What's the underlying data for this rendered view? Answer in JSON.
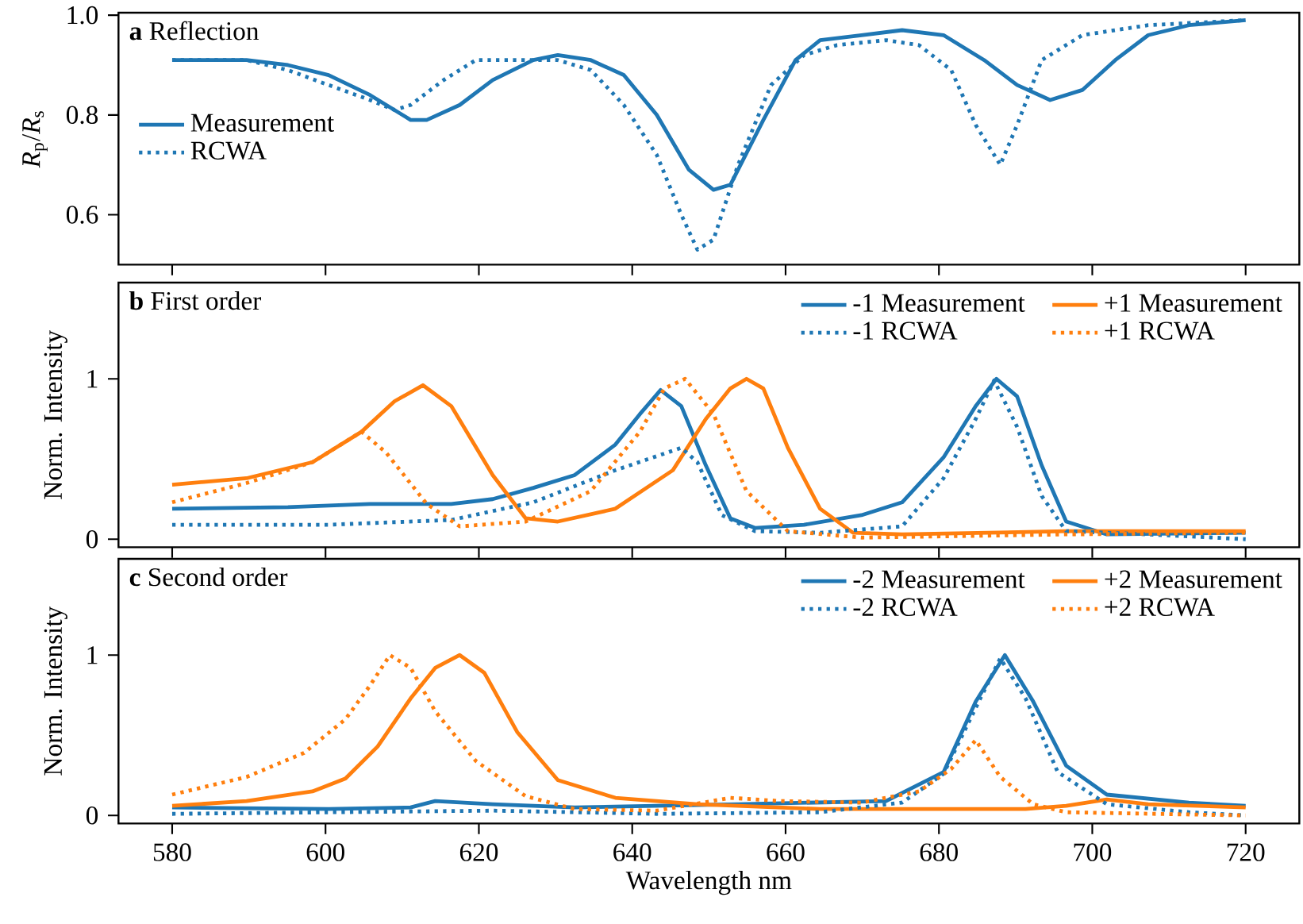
{
  "chart_data": [
    {
      "type": "line",
      "title": "**a** Reflection",
      "ylabel": "*R*$_{p}$/*R*$_{s}$",
      "xlim": [
        573,
        727
      ],
      "xticks": [
        580,
        600,
        620,
        640,
        660,
        680,
        700,
        720
      ],
      "ylim": [
        0.5,
        1.005
      ],
      "yticks": [
        0.6,
        0.8,
        {
          "value": 1.0,
          "label": "1.0"
        }
      ],
      "tick_labels": "y",
      "legend": "left",
      "marker": "none",
      "series": [
        {
          "name": "Measurement",
          "color": "#1f77b4",
          "line_style": "solid",
          "x": [
            580,
            589.7,
            595.1,
            600.4,
            605.8,
            611.1,
            613.2,
            617.5,
            621.8,
            627.1,
            630.3,
            634.6,
            638.9,
            643.2,
            647.4,
            650.6,
            652.8,
            657.1,
            661.3,
            664.5,
            669.9,
            675.2,
            680.6,
            685.9,
            690.2,
            694.5,
            698.7,
            703,
            707.3,
            712.6,
            720
          ],
          "values": [
            0.91,
            0.91,
            0.9,
            0.88,
            0.84,
            0.79,
            0.79,
            0.82,
            0.87,
            0.91,
            0.92,
            0.91,
            0.88,
            0.8,
            0.69,
            0.65,
            0.66,
            0.79,
            0.91,
            0.95,
            0.96,
            0.97,
            0.96,
            0.91,
            0.86,
            0.83,
            0.85,
            0.91,
            0.96,
            0.98,
            0.99
          ]
        },
        {
          "name": "RCWA",
          "color": "#1f77b4",
          "line_style": "dotted",
          "x": [
            580,
            589.7,
            595.1,
            600.4,
            605.8,
            609,
            611.1,
            615.4,
            619.6,
            623.9,
            630.3,
            634.6,
            638.9,
            643.2,
            646.4,
            648.5,
            650.6,
            653.8,
            658.1,
            662.4,
            666.7,
            673.1,
            677.4,
            681.6,
            684.8,
            688,
            690.2,
            693.4,
            698.7,
            707.3,
            720
          ],
          "values": [
            0.91,
            0.91,
            0.89,
            0.86,
            0.83,
            0.81,
            0.82,
            0.87,
            0.91,
            0.91,
            0.91,
            0.89,
            0.82,
            0.72,
            0.6,
            0.53,
            0.55,
            0.7,
            0.86,
            0.92,
            0.94,
            0.95,
            0.94,
            0.89,
            0.78,
            0.7,
            0.78,
            0.91,
            0.96,
            0.98,
            0.99
          ]
        }
      ]
    },
    {
      "type": "line",
      "title": "**b** First order",
      "ylabel": "Norm. Intensity",
      "xlim": [
        573,
        727
      ],
      "xticks": [
        580,
        600,
        620,
        640,
        660,
        680,
        700,
        720
      ],
      "ylim": [
        -0.05,
        1.6
      ],
      "yticks": [
        0,
        1
      ],
      "tick_labels": "y",
      "legend": "top right",
      "marker": "none",
      "series": [
        {
          "name": "-1 Measurement",
          "color": "#1f77b4",
          "line_style": "solid",
          "x": [
            580,
            595.1,
            605.8,
            616.4,
            621.8,
            627.1,
            632.5,
            637.8,
            641,
            643.7,
            646.4,
            649.6,
            652.8,
            656,
            662.4,
            669.9,
            675.2,
            680.6,
            684.8,
            687.5,
            690.2,
            693.4,
            696.6,
            701.9,
            720
          ],
          "values": [
            0.19,
            0.2,
            0.22,
            0.22,
            0.25,
            0.32,
            0.4,
            0.59,
            0.78,
            0.93,
            0.83,
            0.46,
            0.13,
            0.07,
            0.09,
            0.15,
            0.23,
            0.51,
            0.83,
            1.0,
            0.89,
            0.46,
            0.11,
            0.03,
            0.04
          ]
        },
        {
          "name": "+1 Measurement",
          "color": "#ff7f0e",
          "line_style": "solid",
          "x": [
            580,
            589.7,
            598.3,
            604.7,
            609,
            612.7,
            616.4,
            621.8,
            626.1,
            630.3,
            637.8,
            645.3,
            649.6,
            652.8,
            654.9,
            657.1,
            660.3,
            664.5,
            668.8,
            675.2,
            696.6,
            720
          ],
          "values": [
            0.34,
            0.38,
            0.48,
            0.67,
            0.86,
            0.96,
            0.83,
            0.4,
            0.13,
            0.11,
            0.19,
            0.43,
            0.75,
            0.94,
            1.0,
            0.94,
            0.57,
            0.19,
            0.04,
            0.03,
            0.05,
            0.05
          ]
        },
        {
          "name": "-1 RCWA",
          "color": "#1f77b4",
          "line_style": "dotted",
          "x": [
            580,
            600.4,
            616.4,
            627.1,
            637.8,
            646.4,
            648.5,
            651.7,
            656,
            664.5,
            675.2,
            680.6,
            684.8,
            687.2,
            690.2,
            693.4,
            696.6,
            707.3,
            720
          ],
          "values": [
            0.09,
            0.09,
            0.12,
            0.23,
            0.43,
            0.57,
            0.48,
            0.15,
            0.05,
            0.04,
            0.08,
            0.38,
            0.75,
            0.99,
            0.7,
            0.27,
            0.05,
            0.03,
            0
          ]
        },
        {
          "name": "+1 RCWA",
          "color": "#ff7f0e",
          "line_style": "dotted",
          "x": [
            580,
            589.7,
            598.3,
            604.7,
            607.9,
            613.2,
            617.5,
            626.1,
            634.6,
            641,
            644.2,
            646.9,
            650.6,
            654.9,
            660.3,
            669.9,
            696.6,
            720
          ],
          "values": [
            0.23,
            0.35,
            0.48,
            0.67,
            0.54,
            0.22,
            0.08,
            0.11,
            0.3,
            0.67,
            0.94,
            1.0,
            0.78,
            0.3,
            0.05,
            0.01,
            0.03,
            0.04
          ]
        }
      ]
    },
    {
      "type": "line",
      "title": "**c** Second order",
      "xlabel": "Wavelength nm",
      "ylabel": "Norm. Intensity",
      "xlim": [
        573,
        727
      ],
      "xticks": [
        580,
        600,
        620,
        640,
        660,
        680,
        700,
        720
      ],
      "ylim": [
        -0.05,
        1.6
      ],
      "yticks": [
        0,
        1
      ],
      "legend": "top right",
      "marker": "none",
      "series": [
        {
          "name": "-2 Measurement",
          "color": "#1f77b4",
          "line_style": "solid",
          "x": [
            580,
            600.4,
            611.1,
            614.3,
            621.8,
            632.5,
            653.8,
            673.1,
            680.6,
            684.8,
            688.6,
            692.3,
            696.6,
            701.9,
            712.6,
            720
          ],
          "values": [
            0.05,
            0.04,
            0.05,
            0.09,
            0.07,
            0.05,
            0.07,
            0.09,
            0.27,
            0.71,
            1.0,
            0.71,
            0.31,
            0.13,
            0.08,
            0.06
          ]
        },
        {
          "name": "+2 Measurement",
          "color": "#ff7f0e",
          "line_style": "solid",
          "x": [
            580,
            589.7,
            598.3,
            602.6,
            606.8,
            611.1,
            614.3,
            617.5,
            620.7,
            625,
            630.3,
            637.8,
            648.5,
            664.5,
            691.3,
            696.6,
            701.9,
            707.3,
            720
          ],
          "values": [
            0.06,
            0.09,
            0.15,
            0.23,
            0.43,
            0.73,
            0.92,
            1.0,
            0.89,
            0.52,
            0.22,
            0.11,
            0.07,
            0.04,
            0.04,
            0.06,
            0.1,
            0.07,
            0.05
          ]
        },
        {
          "name": "-2 RCWA",
          "color": "#1f77b4",
          "line_style": "dotted",
          "x": [
            580,
            621.8,
            643.2,
            664.5,
            675.2,
            680.6,
            685.4,
            688,
            691.3,
            695.5,
            701.9,
            712.6,
            720
          ],
          "values": [
            0.01,
            0.03,
            0.01,
            0.02,
            0.08,
            0.26,
            0.73,
            0.98,
            0.73,
            0.27,
            0.07,
            0.02,
            0
          ]
        },
        {
          "name": "+2 RCWA",
          "color": "#ff7f0e",
          "line_style": "dotted",
          "x": [
            580,
            589.7,
            597.2,
            602.6,
            605.8,
            608.4,
            611.1,
            614.3,
            619.6,
            626.1,
            632.5,
            643.2,
            652.8,
            659.2,
            669.9,
            677.4,
            681.6,
            684.8,
            688,
            692.3,
            696.6,
            720
          ],
          "values": [
            0.13,
            0.24,
            0.39,
            0.6,
            0.81,
            1.0,
            0.92,
            0.65,
            0.34,
            0.12,
            0.04,
            0.03,
            0.11,
            0.09,
            0.08,
            0.15,
            0.29,
            0.47,
            0.24,
            0.07,
            0.02,
            0
          ]
        }
      ]
    }
  ]
}
